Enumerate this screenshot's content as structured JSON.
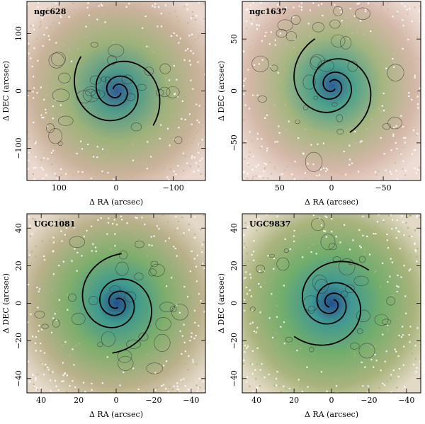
{
  "figure": {
    "panels": [
      {
        "name": "ngc628",
        "xlabel": "Δ RA (arcsec)",
        "ylabel": "Δ DEC (arcsec)",
        "xticks": [
          "100",
          "0",
          "−100"
        ],
        "yticks": [
          "100",
          "0",
          "−100"
        ],
        "palette": {
          "outer": "#c9b29a",
          "mid": "#9eb27a",
          "inner": "#4f9a8a",
          "core": "#2f5c93",
          "speck": "#ead8cf"
        }
      },
      {
        "name": "ngc1637",
        "xlabel": "Δ RA (arcsec)",
        "ylabel": "Δ DEC (arcsec)",
        "xticks": [
          "50",
          "0",
          "−50"
        ],
        "yticks": [
          "50",
          "0",
          "−50"
        ],
        "palette": {
          "outer": "#d3b7a7",
          "mid": "#a5b580",
          "inner": "#4aa08b",
          "core": "#2d5d95",
          "speck": "#eddcd4"
        }
      },
      {
        "name": "UGC1081",
        "xlabel": "Δ RA (arcsec)",
        "ylabel": "Δ DEC (arcsec)",
        "xticks": [
          "40",
          "20",
          "0",
          "−20",
          "−40"
        ],
        "yticks": [
          "40",
          "20",
          "0",
          "−20",
          "−40"
        ],
        "palette": {
          "outer": "#b9b08a",
          "mid": "#7fae6c",
          "inner": "#3f9a8d",
          "core": "#244f8c",
          "speck": "#e4d8c8"
        }
      },
      {
        "name": "UGC9837",
        "xlabel": "Δ RA (arcsec)",
        "ylabel": "Δ DEC (arcsec)",
        "xticks": [
          "40",
          "20",
          "0",
          "−20",
          "−40"
        ],
        "yticks": [
          "40",
          "20",
          "0",
          "−20",
          "−40"
        ],
        "palette": {
          "outer": "#a9b37c",
          "mid": "#72ad6c",
          "inner": "#3f9893",
          "core": "#244f8c",
          "speck": "#e2dac6"
        }
      }
    ]
  }
}
